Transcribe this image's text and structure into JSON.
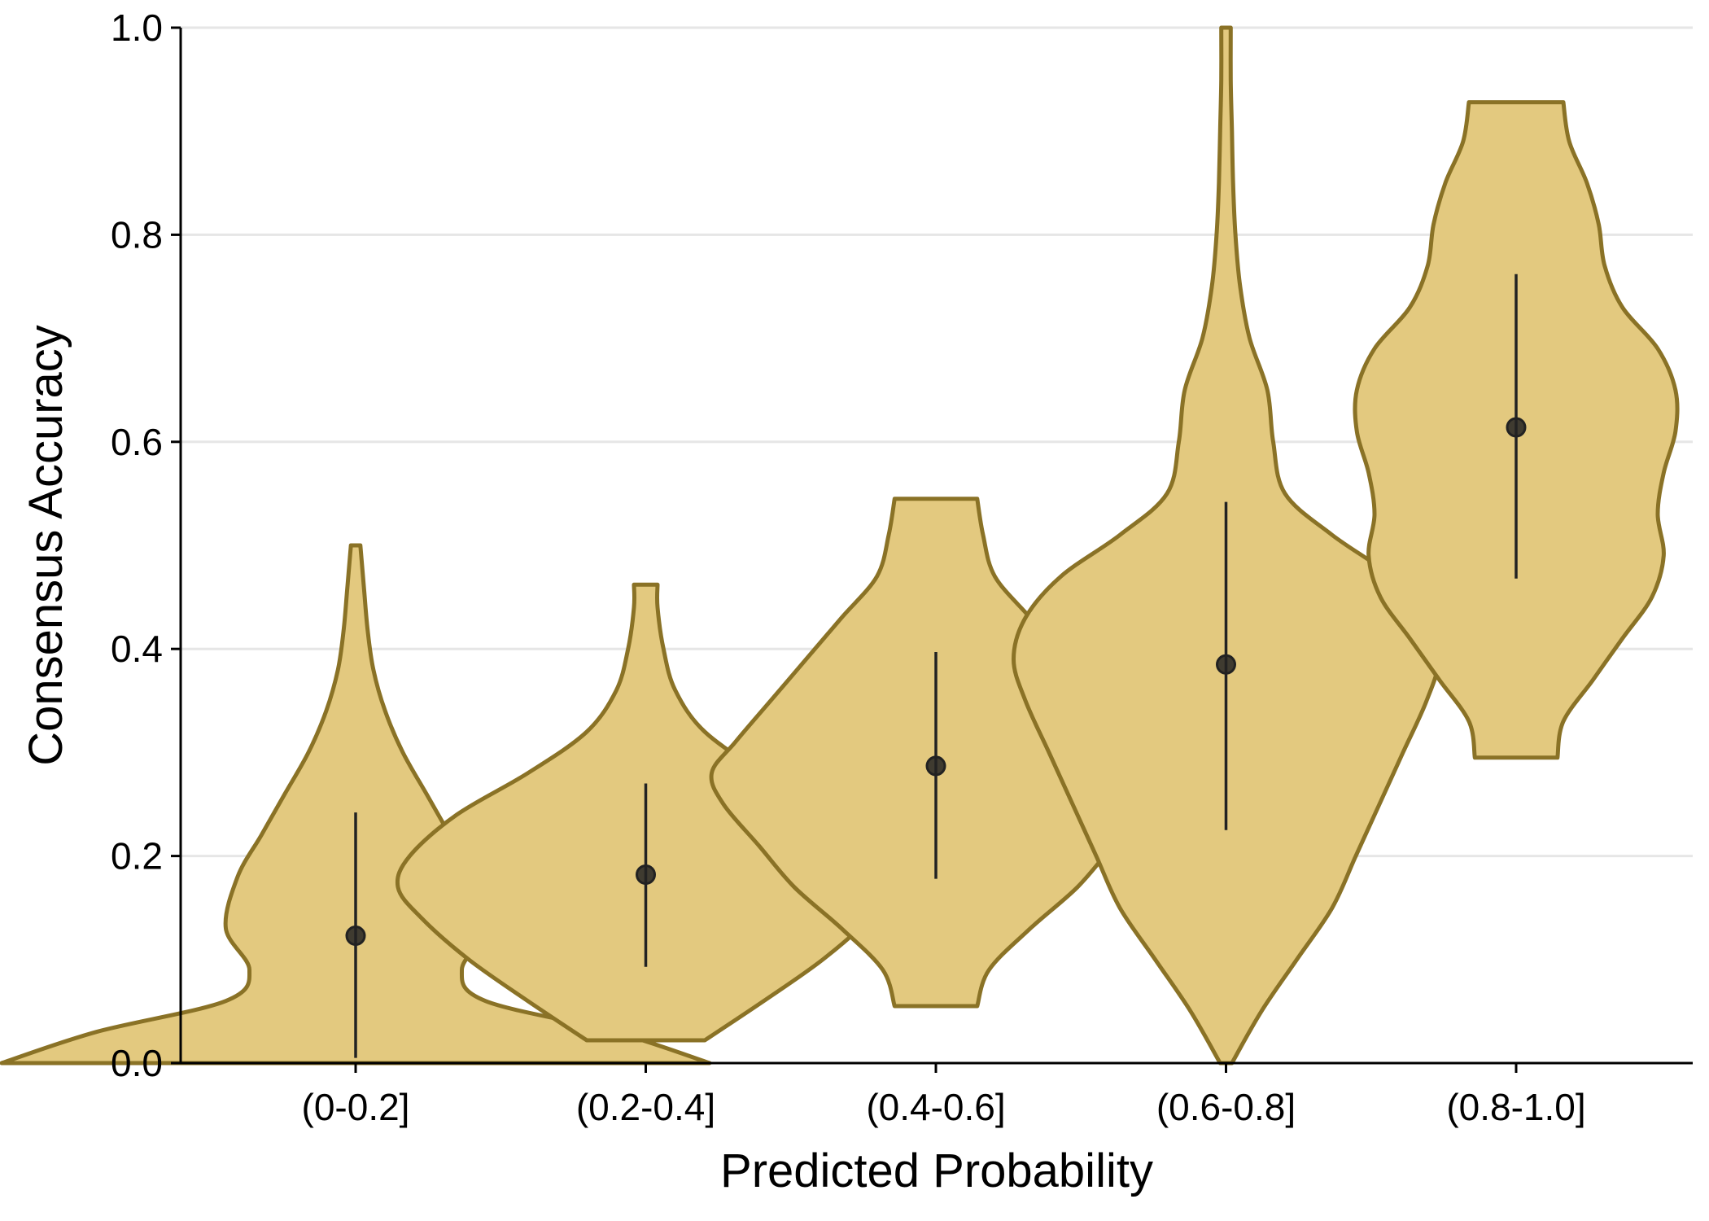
{
  "chart_data": {
    "type": "violin",
    "title": "",
    "xlabel": "Predicted Probability",
    "ylabel": "Consensus Accuracy",
    "categories": [
      "(0-0.2]",
      "(0.2-0.4]",
      "(0.4-0.6]",
      "(0.6-0.8]",
      "(0.8-1.0]"
    ],
    "ylim": [
      0,
      1
    ],
    "yticks": [
      "0.0",
      "0.2",
      "0.4",
      "0.6",
      "0.8",
      "1.0"
    ],
    "grid": "horizontal",
    "colors": {
      "fill": "#e3c97f",
      "outline": "#8a7226",
      "marker": "#222222",
      "grid": "#e6e6e6"
    },
    "violins": [
      {
        "category": "(0-0.2]",
        "median": 0.123,
        "interval": [
          0.005,
          0.242
        ],
        "ymin": 0.0,
        "ymax": 0.5,
        "profile": [
          [
            0.0,
            0.3
          ],
          [
            0.03,
            0.22
          ],
          [
            0.06,
            0.11
          ],
          [
            0.09,
            0.09
          ],
          [
            0.13,
            0.11
          ],
          [
            0.18,
            0.1
          ],
          [
            0.22,
            0.08
          ],
          [
            0.26,
            0.06
          ],
          [
            0.3,
            0.04
          ],
          [
            0.34,
            0.025
          ],
          [
            0.38,
            0.015
          ],
          [
            0.42,
            0.01
          ],
          [
            0.46,
            0.007
          ],
          [
            0.5,
            0.004
          ]
        ]
      },
      {
        "category": "(0.2-0.4]",
        "median": 0.182,
        "interval": [
          0.093,
          0.27
        ],
        "ymin": 0.022,
        "ymax": 0.462,
        "profile": [
          [
            0.022,
            0.05
          ],
          [
            0.06,
            0.1
          ],
          [
            0.1,
            0.15
          ],
          [
            0.14,
            0.19
          ],
          [
            0.17,
            0.21
          ],
          [
            0.2,
            0.2
          ],
          [
            0.24,
            0.16
          ],
          [
            0.28,
            0.1
          ],
          [
            0.32,
            0.05
          ],
          [
            0.36,
            0.025
          ],
          [
            0.4,
            0.015
          ],
          [
            0.44,
            0.01
          ],
          [
            0.462,
            0.01
          ]
        ]
      },
      {
        "category": "(0.4-0.6]",
        "median": 0.287,
        "interval": [
          0.178,
          0.397
        ],
        "ymin": 0.055,
        "ymax": 0.545,
        "profile": [
          [
            0.055,
            0.035
          ],
          [
            0.09,
            0.045
          ],
          [
            0.13,
            0.08
          ],
          [
            0.17,
            0.12
          ],
          [
            0.21,
            0.15
          ],
          [
            0.25,
            0.18
          ],
          [
            0.28,
            0.19
          ],
          [
            0.31,
            0.17
          ],
          [
            0.35,
            0.14
          ],
          [
            0.39,
            0.11
          ],
          [
            0.43,
            0.08
          ],
          [
            0.47,
            0.05
          ],
          [
            0.51,
            0.04
          ],
          [
            0.545,
            0.035
          ]
        ]
      },
      {
        "category": "(0.6-0.8]",
        "median": 0.385,
        "interval": [
          0.225,
          0.542
        ],
        "ymin": 0.0,
        "ymax": 1.0,
        "profile": [
          [
            0.0,
            0.005
          ],
          [
            0.05,
            0.03
          ],
          [
            0.1,
            0.06
          ],
          [
            0.15,
            0.09
          ],
          [
            0.2,
            0.11
          ],
          [
            0.25,
            0.13
          ],
          [
            0.3,
            0.15
          ],
          [
            0.35,
            0.17
          ],
          [
            0.39,
            0.18
          ],
          [
            0.43,
            0.17
          ],
          [
            0.47,
            0.14
          ],
          [
            0.51,
            0.09
          ],
          [
            0.55,
            0.05
          ],
          [
            0.6,
            0.04
          ],
          [
            0.65,
            0.035
          ],
          [
            0.7,
            0.02
          ],
          [
            0.75,
            0.012
          ],
          [
            0.8,
            0.008
          ],
          [
            0.85,
            0.006
          ],
          [
            0.9,
            0.005
          ],
          [
            0.95,
            0.004
          ],
          [
            1.0,
            0.004
          ]
        ]
      },
      {
        "category": "(0.8-1.0]",
        "median": 0.614,
        "interval": [
          0.468,
          0.762
        ],
        "ymin": 0.295,
        "ymax": 0.928,
        "profile": [
          [
            0.295,
            0.035
          ],
          [
            0.33,
            0.04
          ],
          [
            0.37,
            0.065
          ],
          [
            0.41,
            0.09
          ],
          [
            0.45,
            0.115
          ],
          [
            0.49,
            0.125
          ],
          [
            0.53,
            0.12
          ],
          [
            0.57,
            0.125
          ],
          [
            0.61,
            0.135
          ],
          [
            0.65,
            0.135
          ],
          [
            0.69,
            0.12
          ],
          [
            0.73,
            0.09
          ],
          [
            0.77,
            0.075
          ],
          [
            0.81,
            0.07
          ],
          [
            0.85,
            0.06
          ],
          [
            0.89,
            0.045
          ],
          [
            0.928,
            0.04
          ]
        ]
      }
    ]
  }
}
